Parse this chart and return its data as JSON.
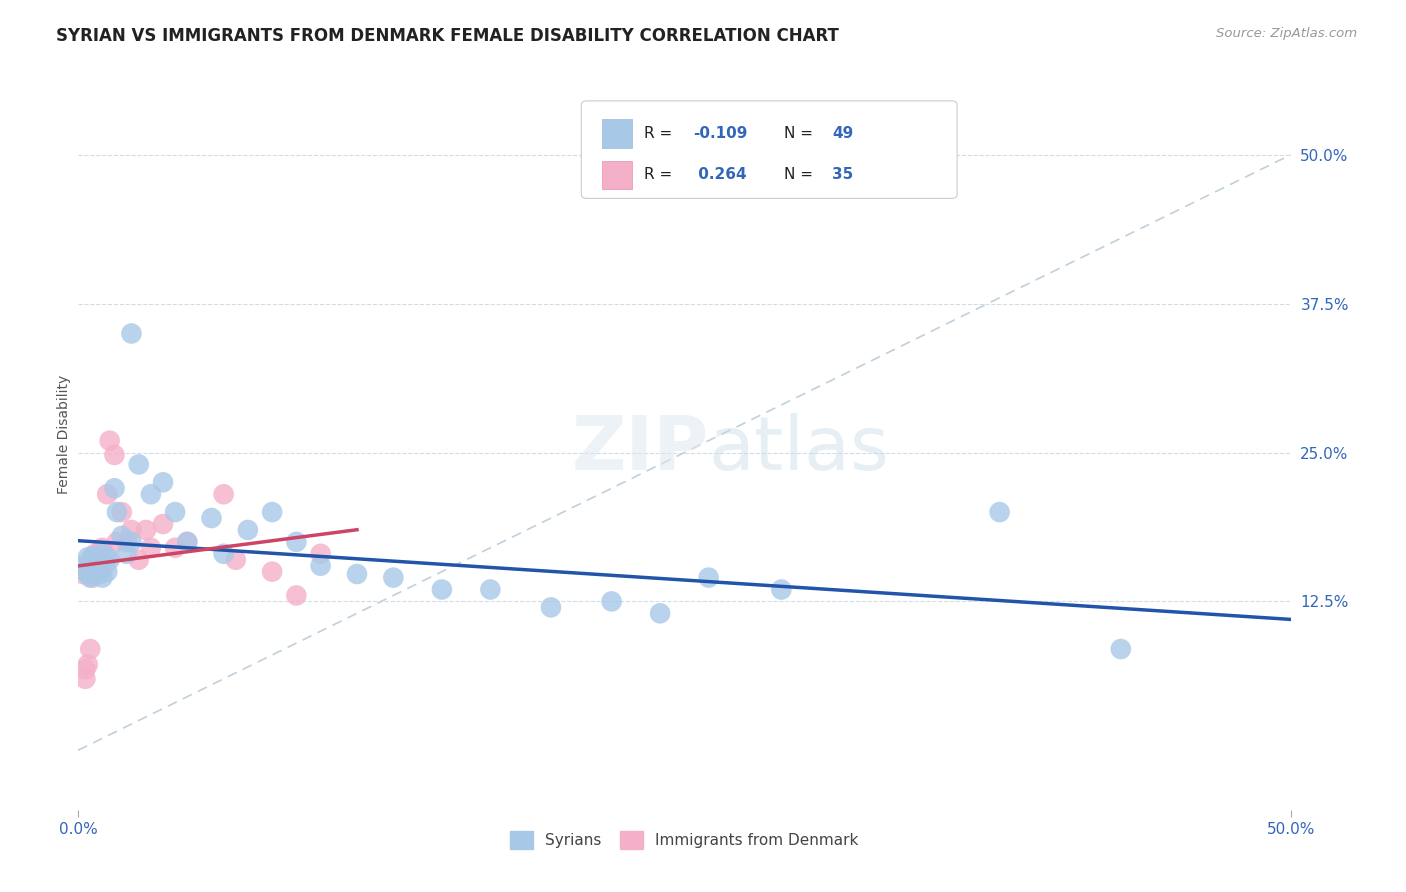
{
  "title": "SYRIAN VS IMMIGRANTS FROM DENMARK FEMALE DISABILITY CORRELATION CHART",
  "source": "Source: ZipAtlas.com",
  "ylabel": "Female Disability",
  "xlim": [
    0.0,
    0.5
  ],
  "ylim": [
    -0.05,
    0.58
  ],
  "color_syrian": "#a8c8e8",
  "color_denmark": "#f4b0c8",
  "line_color_syrian": "#2255aa",
  "line_color_denmark": "#cc4466",
  "ref_line_color": "#c0d0dc",
  "grid_color": "#d0dce8",
  "legend_r_syrian": "-0.109",
  "legend_n_syrian": "49",
  "legend_r_denmark": "0.264",
  "legend_n_denmark": "35",
  "syr_x": [
    0.002,
    0.003,
    0.004,
    0.004,
    0.005,
    0.005,
    0.006,
    0.006,
    0.007,
    0.007,
    0.007,
    0.008,
    0.008,
    0.009,
    0.009,
    0.01,
    0.01,
    0.011,
    0.012,
    0.012,
    0.013,
    0.015,
    0.016,
    0.018,
    0.02,
    0.022,
    0.025,
    0.03,
    0.035,
    0.04,
    0.045,
    0.055,
    0.06,
    0.07,
    0.08,
    0.09,
    0.1,
    0.115,
    0.13,
    0.15,
    0.17,
    0.195,
    0.22,
    0.24,
    0.26,
    0.29,
    0.022,
    0.38,
    0.43
  ],
  "syr_y": [
    0.155,
    0.15,
    0.148,
    0.162,
    0.145,
    0.158,
    0.15,
    0.163,
    0.148,
    0.155,
    0.162,
    0.15,
    0.158,
    0.148,
    0.162,
    0.145,
    0.165,
    0.16,
    0.15,
    0.162,
    0.16,
    0.22,
    0.2,
    0.18,
    0.165,
    0.175,
    0.24,
    0.215,
    0.225,
    0.2,
    0.175,
    0.195,
    0.165,
    0.185,
    0.2,
    0.175,
    0.155,
    0.148,
    0.145,
    0.135,
    0.135,
    0.12,
    0.125,
    0.115,
    0.145,
    0.135,
    0.35,
    0.2,
    0.085
  ],
  "den_x": [
    0.002,
    0.003,
    0.003,
    0.004,
    0.005,
    0.005,
    0.005,
    0.006,
    0.006,
    0.007,
    0.007,
    0.008,
    0.008,
    0.009,
    0.01,
    0.01,
    0.011,
    0.012,
    0.013,
    0.015,
    0.016,
    0.018,
    0.02,
    0.022,
    0.025,
    0.028,
    0.03,
    0.035,
    0.04,
    0.045,
    0.06,
    0.065,
    0.08,
    0.09,
    0.1
  ],
  "den_y": [
    0.148,
    0.068,
    0.06,
    0.072,
    0.085,
    0.148,
    0.155,
    0.145,
    0.162,
    0.15,
    0.165,
    0.148,
    0.162,
    0.155,
    0.16,
    0.17,
    0.155,
    0.215,
    0.26,
    0.248,
    0.175,
    0.2,
    0.175,
    0.185,
    0.16,
    0.185,
    0.17,
    0.19,
    0.17,
    0.175,
    0.215,
    0.16,
    0.15,
    0.13,
    0.165
  ]
}
